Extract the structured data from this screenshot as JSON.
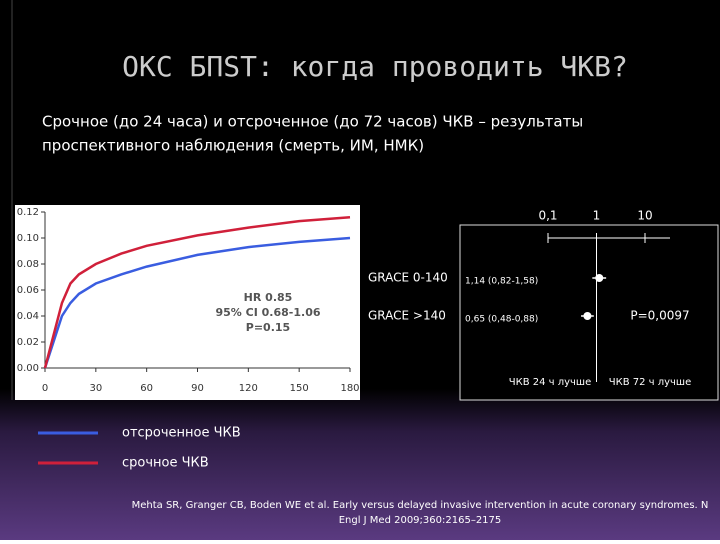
{
  "slide": {
    "title": "ОКС БПST: когда проводить ЧКВ?",
    "subtitle": [
      "Срочное (до 24 часа) и отсроченное  (до 72 часов) ЧКВ – результаты",
      "проспективного наблюдения (смерть, ИМ, НМК)"
    ],
    "citation": [
      "Mehta SR, Granger CB, Boden WE et al. Early versus delayed invasive intervention in acute coronary syndromes. N",
      "Engl J Med 2009;360:2165–2175"
    ]
  },
  "chart_data": [
    {
      "type": "line",
      "x": [
        0,
        5,
        10,
        15,
        20,
        30,
        45,
        60,
        90,
        120,
        150,
        180
      ],
      "series": [
        {
          "name": "отсроченное ЧКВ",
          "color": "#3a5de0",
          "values": [
            0,
            0.02,
            0.04,
            0.05,
            0.057,
            0.065,
            0.072,
            0.078,
            0.087,
            0.093,
            0.097,
            0.1
          ]
        },
        {
          "name": "срочное ЧКВ",
          "color": "#d0203a",
          "values": [
            0,
            0.025,
            0.05,
            0.065,
            0.072,
            0.08,
            0.088,
            0.094,
            0.102,
            0.108,
            0.113,
            0.116
          ]
        }
      ],
      "xlim": [
        0,
        180
      ],
      "xticks": [
        0,
        30,
        60,
        90,
        120,
        150,
        180
      ],
      "ylim": [
        0,
        0.12
      ],
      "yticks": [
        {
          "value": 0,
          "label": "0.00"
        },
        {
          "value": 0.02,
          "label": "0.02"
        },
        {
          "value": 0.04,
          "label": "0.04"
        },
        {
          "value": 0.06,
          "label": "0.06"
        },
        {
          "value": 0.08,
          "label": "0.08"
        },
        {
          "value": 0.1,
          "label": "0.10"
        },
        {
          "value": 0.12,
          "label": "0.12"
        }
      ],
      "annotations": [
        "HR 0.85",
        "95% CI 0.68-1.06",
        "P=0.15"
      ]
    },
    {
      "type": "forest",
      "categories": [
        "GRACE 0-140",
        "GRACE >140"
      ],
      "values": [
        1.14,
        0.65
      ],
      "ci_low": [
        0.82,
        0.48
      ],
      "ci_high": [
        1.58,
        0.88
      ],
      "value_labels": [
        "1,14 (0,82-1,58)",
        "0,65 (0,48-0,88)"
      ],
      "xlim": [
        0.1,
        10
      ],
      "log_x": true,
      "xticks": [
        {
          "value": 0.1,
          "label": "0,1"
        },
        1,
        10
      ],
      "annotations": [
        "P=0,0097"
      ],
      "xlabels": [
        "ЧКВ 24 ч лучше",
        "ЧКВ 72 ч лучше"
      ]
    }
  ]
}
